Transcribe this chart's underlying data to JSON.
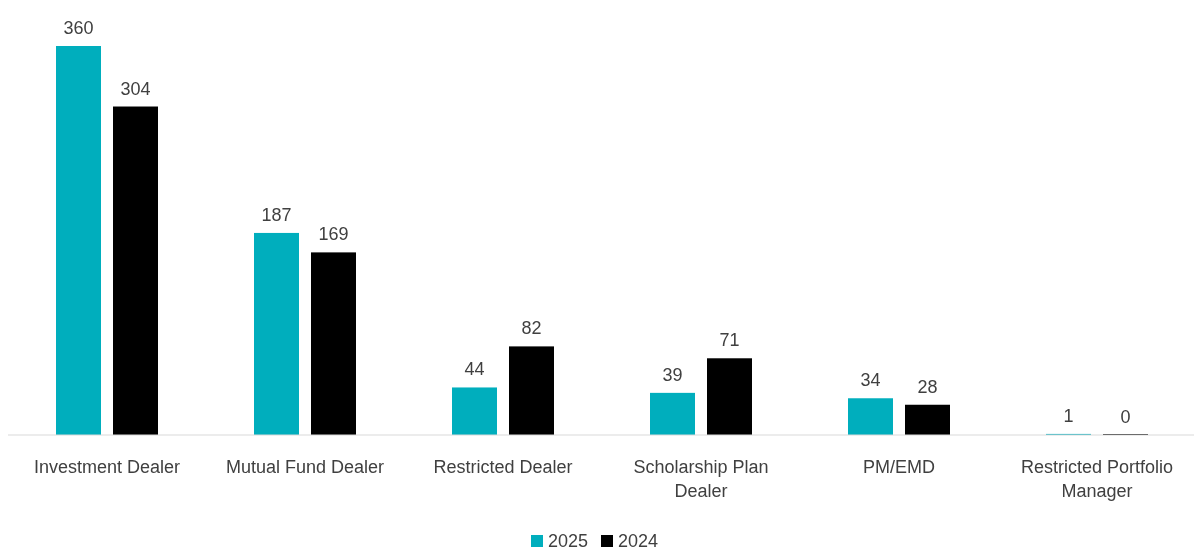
{
  "chart_data": {
    "type": "bar",
    "categories": [
      "Investment Dealer",
      "Mutual Fund Dealer",
      "Restricted Dealer",
      "Scholarship Plan Dealer",
      "PM/EMD",
      "Restricted Portfolio Manager"
    ],
    "series": [
      {
        "name": "2025",
        "color": "#00aebd",
        "values": [
          360,
          187,
          44,
          39,
          34,
          1
        ]
      },
      {
        "name": "2024",
        "color": "#000000",
        "values": [
          304,
          169,
          82,
          71,
          28,
          0
        ]
      }
    ],
    "data_labels": true,
    "legend": "bottom"
  }
}
